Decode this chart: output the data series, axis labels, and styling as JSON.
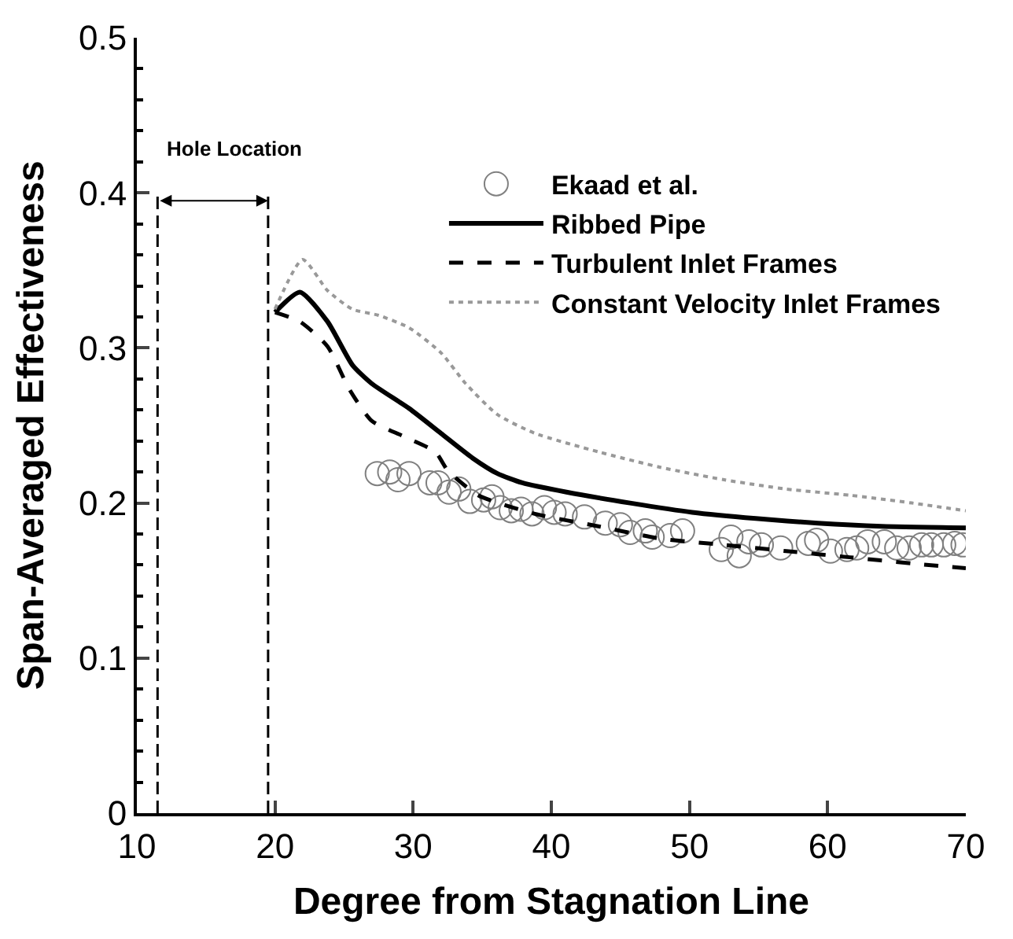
{
  "chart_data": {
    "type": "line",
    "xlabel": "Degree from Stagnation Line",
    "ylabel": "Span-Averaged Effectiveness",
    "xlim": [
      10,
      70
    ],
    "xticks": [
      10,
      20,
      30,
      40,
      50,
      60,
      70
    ],
    "ylim": [
      0,
      0.5
    ],
    "yticks": [
      0,
      0.1,
      0.2,
      0.3,
      0.4,
      0.5
    ],
    "legend": "top right",
    "annotations": [
      "Hole Location"
    ],
    "series": [
      {
        "name": "Ekaad et al.",
        "type": "scatter",
        "marker": "circle",
        "color": "#808080",
        "x": [
          27.4,
          28.3,
          28.9,
          29.7,
          31.2,
          31.8,
          32.6,
          33.3,
          34.1,
          35.1,
          35.7,
          36.3,
          37.1,
          37.8,
          38.6,
          39.5,
          40.2,
          41.0,
          42.4,
          43.9,
          45.0,
          45.7,
          46.8,
          47.3,
          48.6,
          49.5,
          52.3,
          53.0,
          53.6,
          54.3,
          55.2,
          56.6,
          58.6,
          59.2,
          60.2,
          61.4,
          62.1,
          62.9,
          64.1,
          65.0,
          65.9,
          66.8,
          67.5,
          68.4,
          69.2,
          69.8
        ],
        "values": [
          0.219,
          0.22,
          0.215,
          0.219,
          0.213,
          0.213,
          0.207,
          0.209,
          0.201,
          0.202,
          0.204,
          0.197,
          0.195,
          0.196,
          0.193,
          0.197,
          0.194,
          0.193,
          0.191,
          0.187,
          0.186,
          0.181,
          0.182,
          0.178,
          0.179,
          0.182,
          0.17,
          0.178,
          0.166,
          0.175,
          0.173,
          0.171,
          0.174,
          0.176,
          0.169,
          0.17,
          0.171,
          0.175,
          0.175,
          0.171,
          0.171,
          0.173,
          0.173,
          0.173,
          0.174,
          0.173
        ]
      },
      {
        "name": "Ribbed Pipe",
        "line_style": "solid",
        "color": "#000000",
        "x": [
          20.0,
          21.8,
          23.8,
          25.6,
          27.0,
          29.7,
          32.0,
          34.3,
          36.1,
          37.9,
          41.1,
          45.7,
          50.2,
          54.8,
          59.3,
          63.9,
          70.0
        ],
        "values": [
          0.323,
          0.336,
          0.317,
          0.289,
          0.277,
          0.261,
          0.245,
          0.229,
          0.219,
          0.213,
          0.207,
          0.2,
          0.194,
          0.19,
          0.187,
          0.185,
          0.184
        ]
      },
      {
        "name": "Turbulent Inlet Frames",
        "line_style": "dashed",
        "color": "#000000",
        "x": [
          20.0,
          21.8,
          23.8,
          25.4,
          27.0,
          29.3,
          31.6,
          32.5,
          34.7,
          38.8,
          43.4,
          47.9,
          52.5,
          57.0,
          61.6,
          66.1,
          70.0
        ],
        "values": [
          0.323,
          0.317,
          0.301,
          0.273,
          0.253,
          0.243,
          0.233,
          0.221,
          0.205,
          0.193,
          0.185,
          0.177,
          0.173,
          0.169,
          0.165,
          0.161,
          0.158
        ]
      },
      {
        "name": "Constant Velocity Inlet Frames",
        "line_style": "dotted",
        "color": "#999999",
        "x": [
          20.0,
          22.0,
          23.8,
          25.6,
          27.5,
          29.7,
          32.0,
          33.8,
          36.1,
          38.8,
          43.4,
          47.9,
          52.5,
          57.0,
          61.6,
          66.1,
          70.0
        ],
        "values": [
          0.325,
          0.357,
          0.337,
          0.325,
          0.321,
          0.313,
          0.297,
          0.277,
          0.257,
          0.245,
          0.233,
          0.223,
          0.215,
          0.209,
          0.205,
          0.2,
          0.195
        ]
      },
      {
        "line_style": "dashed",
        "color": "#000000",
        "x": [
          11.5,
          11.5
        ],
        "values": [
          0,
          0.4
        ]
      },
      {
        "line_style": "dashed",
        "color": "#000000",
        "x": [
          19.5,
          19.5
        ],
        "values": [
          0,
          0.4
        ]
      }
    ]
  }
}
